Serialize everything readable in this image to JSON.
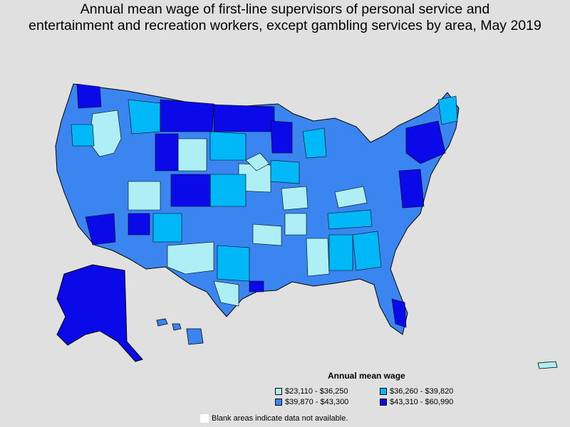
{
  "title": {
    "line1": "Annual mean wage of first-line supervisors of personal service and",
    "line2": "entertainment and recreation workers, except gambling services by area, May 2019"
  },
  "legend": {
    "title": "Annual mean wage",
    "items": [
      {
        "label": "$23,110 - $36,250",
        "color": "#aeeef5"
      },
      {
        "label": "$36,260 - $39,820",
        "color": "#00b8f8"
      },
      {
        "label": "$39,870 - $43,300",
        "color": "#3a85f0"
      },
      {
        "label": "$43,310 - $60,990",
        "color": "#0a0ae8"
      }
    ]
  },
  "note": "Blank areas indicate data not available.",
  "colors": {
    "background": "#e0e0e0",
    "border": "#000000",
    "blank": "#ffffff"
  }
}
